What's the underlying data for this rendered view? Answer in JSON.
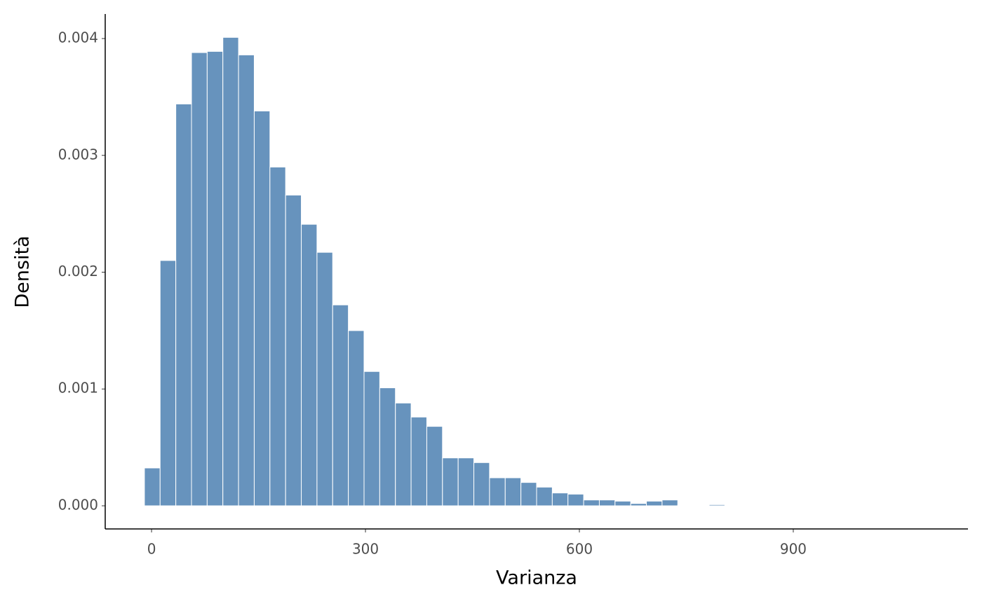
{
  "chart_data": {
    "type": "histogram",
    "x_label": "Varianza",
    "y_label": "Densità",
    "bins": [
      -10,
      12,
      34,
      56,
      78,
      100,
      122,
      144,
      166,
      188,
      210,
      232,
      254,
      276,
      298,
      320,
      342,
      364,
      386,
      408,
      430,
      452,
      474,
      496,
      518,
      540,
      562,
      584,
      606,
      628,
      650,
      672,
      694,
      716,
      738,
      760,
      782,
      804,
      826,
      848,
      870,
      892
    ],
    "counts": [
      0.000324,
      0.0021,
      0.00344,
      0.00388,
      0.00389,
      0.00401,
      0.00386,
      0.00338,
      0.0029,
      0.00266,
      0.00241,
      0.00217,
      0.00172,
      0.0015,
      0.00115,
      0.00101,
      0.00088,
      0.00076,
      0.00068,
      0.00041,
      0.00041,
      0.00037,
      0.00024,
      0.00024,
      0.0002,
      0.00016,
      0.00011,
      0.0001,
      5e-05,
      5e-05,
      4e-05,
      2e-05,
      4e-05,
      5e-05,
      5e-06,
      0,
      1e-05,
      0,
      3e-06,
      0,
      3e-06
    ],
    "color": "#6793bd",
    "xlim": [
      -65,
      1145
    ],
    "ylim": [
      -0.000198,
      0.00421
    ],
    "xticks": [
      0,
      300,
      600,
      900
    ],
    "yticks": [
      {
        "value": 0,
        "label": "0.000"
      },
      {
        "value": 0.001,
        "label": "0.001"
      },
      {
        "value": 0.002,
        "label": "0.002"
      },
      {
        "value": 0.003,
        "label": "0.003"
      },
      {
        "value": 0.004,
        "label": "0.004"
      }
    ]
  }
}
